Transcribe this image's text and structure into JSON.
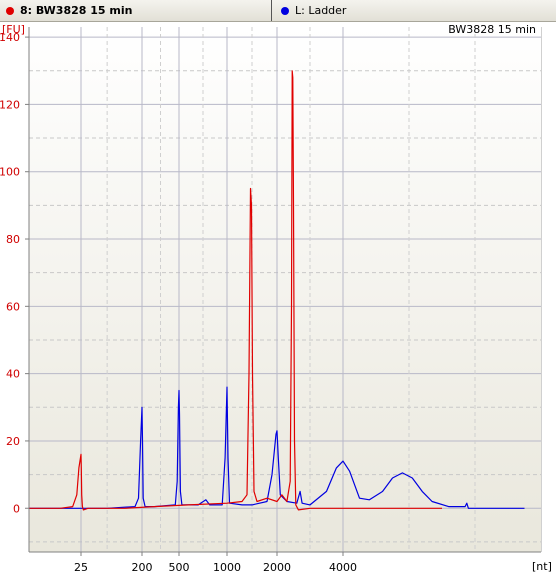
{
  "tabs": [
    {
      "label": "8: BW3828 15 min",
      "color": "#e00000"
    },
    {
      "label": "L: Ladder",
      "color": "#0000e0"
    }
  ],
  "chart_data": {
    "type": "line",
    "title": "BW3828 15 min",
    "ylabel": "[FU]",
    "xlabel": "[nt]",
    "x_ticks": [
      25,
      200,
      500,
      1000,
      2000,
      4000
    ],
    "y_ticks": [
      0,
      20,
      40,
      60,
      80,
      100,
      120,
      140
    ],
    "ylim": [
      -13,
      143
    ],
    "grid": true,
    "series": [
      {
        "name": "8: BW3828 15 min",
        "color": "#e00000",
        "points": [
          {
            "x": 0,
            "y": 0
          },
          {
            "x": 15,
            "y": 0
          },
          {
            "x": 21,
            "y": 0.5
          },
          {
            "x": 23,
            "y": 4
          },
          {
            "x": 24,
            "y": 12
          },
          {
            "x": 25,
            "y": 16
          },
          {
            "x": 26,
            "y": 12
          },
          {
            "x": 27,
            "y": 4
          },
          {
            "x": 29,
            "y": 0.5
          },
          {
            "x": 32,
            "y": -0.5
          },
          {
            "x": 45,
            "y": 0
          },
          {
            "x": 150,
            "y": 0
          },
          {
            "x": 300,
            "y": 0.5
          },
          {
            "x": 600,
            "y": 1
          },
          {
            "x": 1000,
            "y": 1.5
          },
          {
            "x": 1300,
            "y": 2
          },
          {
            "x": 1400,
            "y": 4
          },
          {
            "x": 1440,
            "y": 40
          },
          {
            "x": 1470,
            "y": 95
          },
          {
            "x": 1490,
            "y": 90
          },
          {
            "x": 1510,
            "y": 40
          },
          {
            "x": 1540,
            "y": 5
          },
          {
            "x": 1600,
            "y": 2
          },
          {
            "x": 1800,
            "y": 3
          },
          {
            "x": 2000,
            "y": 2
          },
          {
            "x": 2150,
            "y": 4
          },
          {
            "x": 2300,
            "y": 2
          },
          {
            "x": 2400,
            "y": 8
          },
          {
            "x": 2440,
            "y": 60
          },
          {
            "x": 2460,
            "y": 130
          },
          {
            "x": 2480,
            "y": 128
          },
          {
            "x": 2500,
            "y": 90
          },
          {
            "x": 2530,
            "y": 20
          },
          {
            "x": 2570,
            "y": 1
          },
          {
            "x": 2650,
            "y": -0.5
          },
          {
            "x": 3000,
            "y": 0
          },
          {
            "x": 5000,
            "y": 0
          },
          {
            "x": 7000,
            "y": 0
          }
        ]
      },
      {
        "name": "L: Ladder",
        "color": "#0000e0",
        "points": [
          {
            "x": 0,
            "y": 0
          },
          {
            "x": 20,
            "y": 0
          },
          {
            "x": 100,
            "y": 0
          },
          {
            "x": 180,
            "y": 0.5
          },
          {
            "x": 190,
            "y": 3
          },
          {
            "x": 196,
            "y": 20
          },
          {
            "x": 200,
            "y": 30
          },
          {
            "x": 204,
            "y": 20
          },
          {
            "x": 210,
            "y": 3
          },
          {
            "x": 225,
            "y": 0.5
          },
          {
            "x": 300,
            "y": 0.5
          },
          {
            "x": 470,
            "y": 1
          },
          {
            "x": 485,
            "y": 8
          },
          {
            "x": 495,
            "y": 30
          },
          {
            "x": 500,
            "y": 35
          },
          {
            "x": 505,
            "y": 28
          },
          {
            "x": 515,
            "y": 5
          },
          {
            "x": 530,
            "y": 1
          },
          {
            "x": 700,
            "y": 1
          },
          {
            "x": 780,
            "y": 2.5
          },
          {
            "x": 820,
            "y": 1
          },
          {
            "x": 950,
            "y": 1
          },
          {
            "x": 980,
            "y": 15
          },
          {
            "x": 1000,
            "y": 36
          },
          {
            "x": 1020,
            "y": 15
          },
          {
            "x": 1050,
            "y": 1.5
          },
          {
            "x": 1300,
            "y": 1
          },
          {
            "x": 1500,
            "y": 1
          },
          {
            "x": 1800,
            "y": 2
          },
          {
            "x": 1900,
            "y": 10
          },
          {
            "x": 1980,
            "y": 22
          },
          {
            "x": 2000,
            "y": 23
          },
          {
            "x": 2040,
            "y": 15
          },
          {
            "x": 2100,
            "y": 4
          },
          {
            "x": 2300,
            "y": 2
          },
          {
            "x": 2600,
            "y": 1.5
          },
          {
            "x": 2700,
            "y": 5
          },
          {
            "x": 2760,
            "y": 1.5
          },
          {
            "x": 3000,
            "y": 1
          },
          {
            "x": 3500,
            "y": 5
          },
          {
            "x": 3800,
            "y": 12
          },
          {
            "x": 4000,
            "y": 14
          },
          {
            "x": 4200,
            "y": 11
          },
          {
            "x": 4500,
            "y": 3
          },
          {
            "x": 4800,
            "y": 2.5
          },
          {
            "x": 5200,
            "y": 5
          },
          {
            "x": 5500,
            "y": 9
          },
          {
            "x": 5800,
            "y": 10.5
          },
          {
            "x": 6100,
            "y": 9
          },
          {
            "x": 6400,
            "y": 5
          },
          {
            "x": 6700,
            "y": 2
          },
          {
            "x": 7200,
            "y": 0.5
          },
          {
            "x": 7700,
            "y": 0.5
          },
          {
            "x": 7750,
            "y": 1.5
          },
          {
            "x": 7800,
            "y": 0
          },
          {
            "x": 8500,
            "y": 0
          },
          {
            "x": 9500,
            "y": 0
          }
        ]
      }
    ]
  }
}
